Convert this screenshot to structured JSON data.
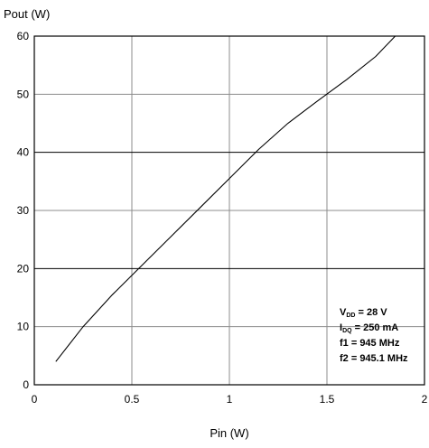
{
  "chart_data": {
    "type": "line",
    "xlabel": "Pin (W)",
    "ylabel": "Pout (W)",
    "xlim": [
      0,
      2
    ],
    "ylim": [
      0,
      60
    ],
    "x_ticks": [
      0,
      0.5,
      1,
      1.5,
      2
    ],
    "x_tick_labels": [
      "0",
      "0.5",
      "1",
      "1.5",
      "2"
    ],
    "y_ticks": [
      0,
      10,
      20,
      30,
      40,
      50,
      60
    ],
    "y_tick_labels": [
      "0",
      "10",
      "20",
      "30",
      "40",
      "50",
      "60"
    ],
    "grid": true,
    "series": [
      {
        "x": [
          0.11,
          0.25,
          0.4,
          0.55,
          0.7,
          0.85,
          1.0,
          1.15,
          1.3,
          1.45,
          1.6,
          1.75,
          1.85
        ],
        "y": [
          4,
          10,
          15.5,
          20.5,
          25.5,
          30.5,
          35.5,
          40.5,
          45,
          48.8,
          52.5,
          56.5,
          60
        ]
      }
    ],
    "annotation": {
      "lines": [
        {
          "main": "V",
          "sub": "DD",
          "rest": " = 28 V"
        },
        {
          "main": "I",
          "sub": "DQ",
          "rest": " = 250 mA"
        },
        {
          "main": "f1 = 945 MHz",
          "sub": "",
          "rest": ""
        },
        {
          "main": "f2 = 945.1 MHz",
          "sub": "",
          "rest": ""
        }
      ]
    }
  }
}
